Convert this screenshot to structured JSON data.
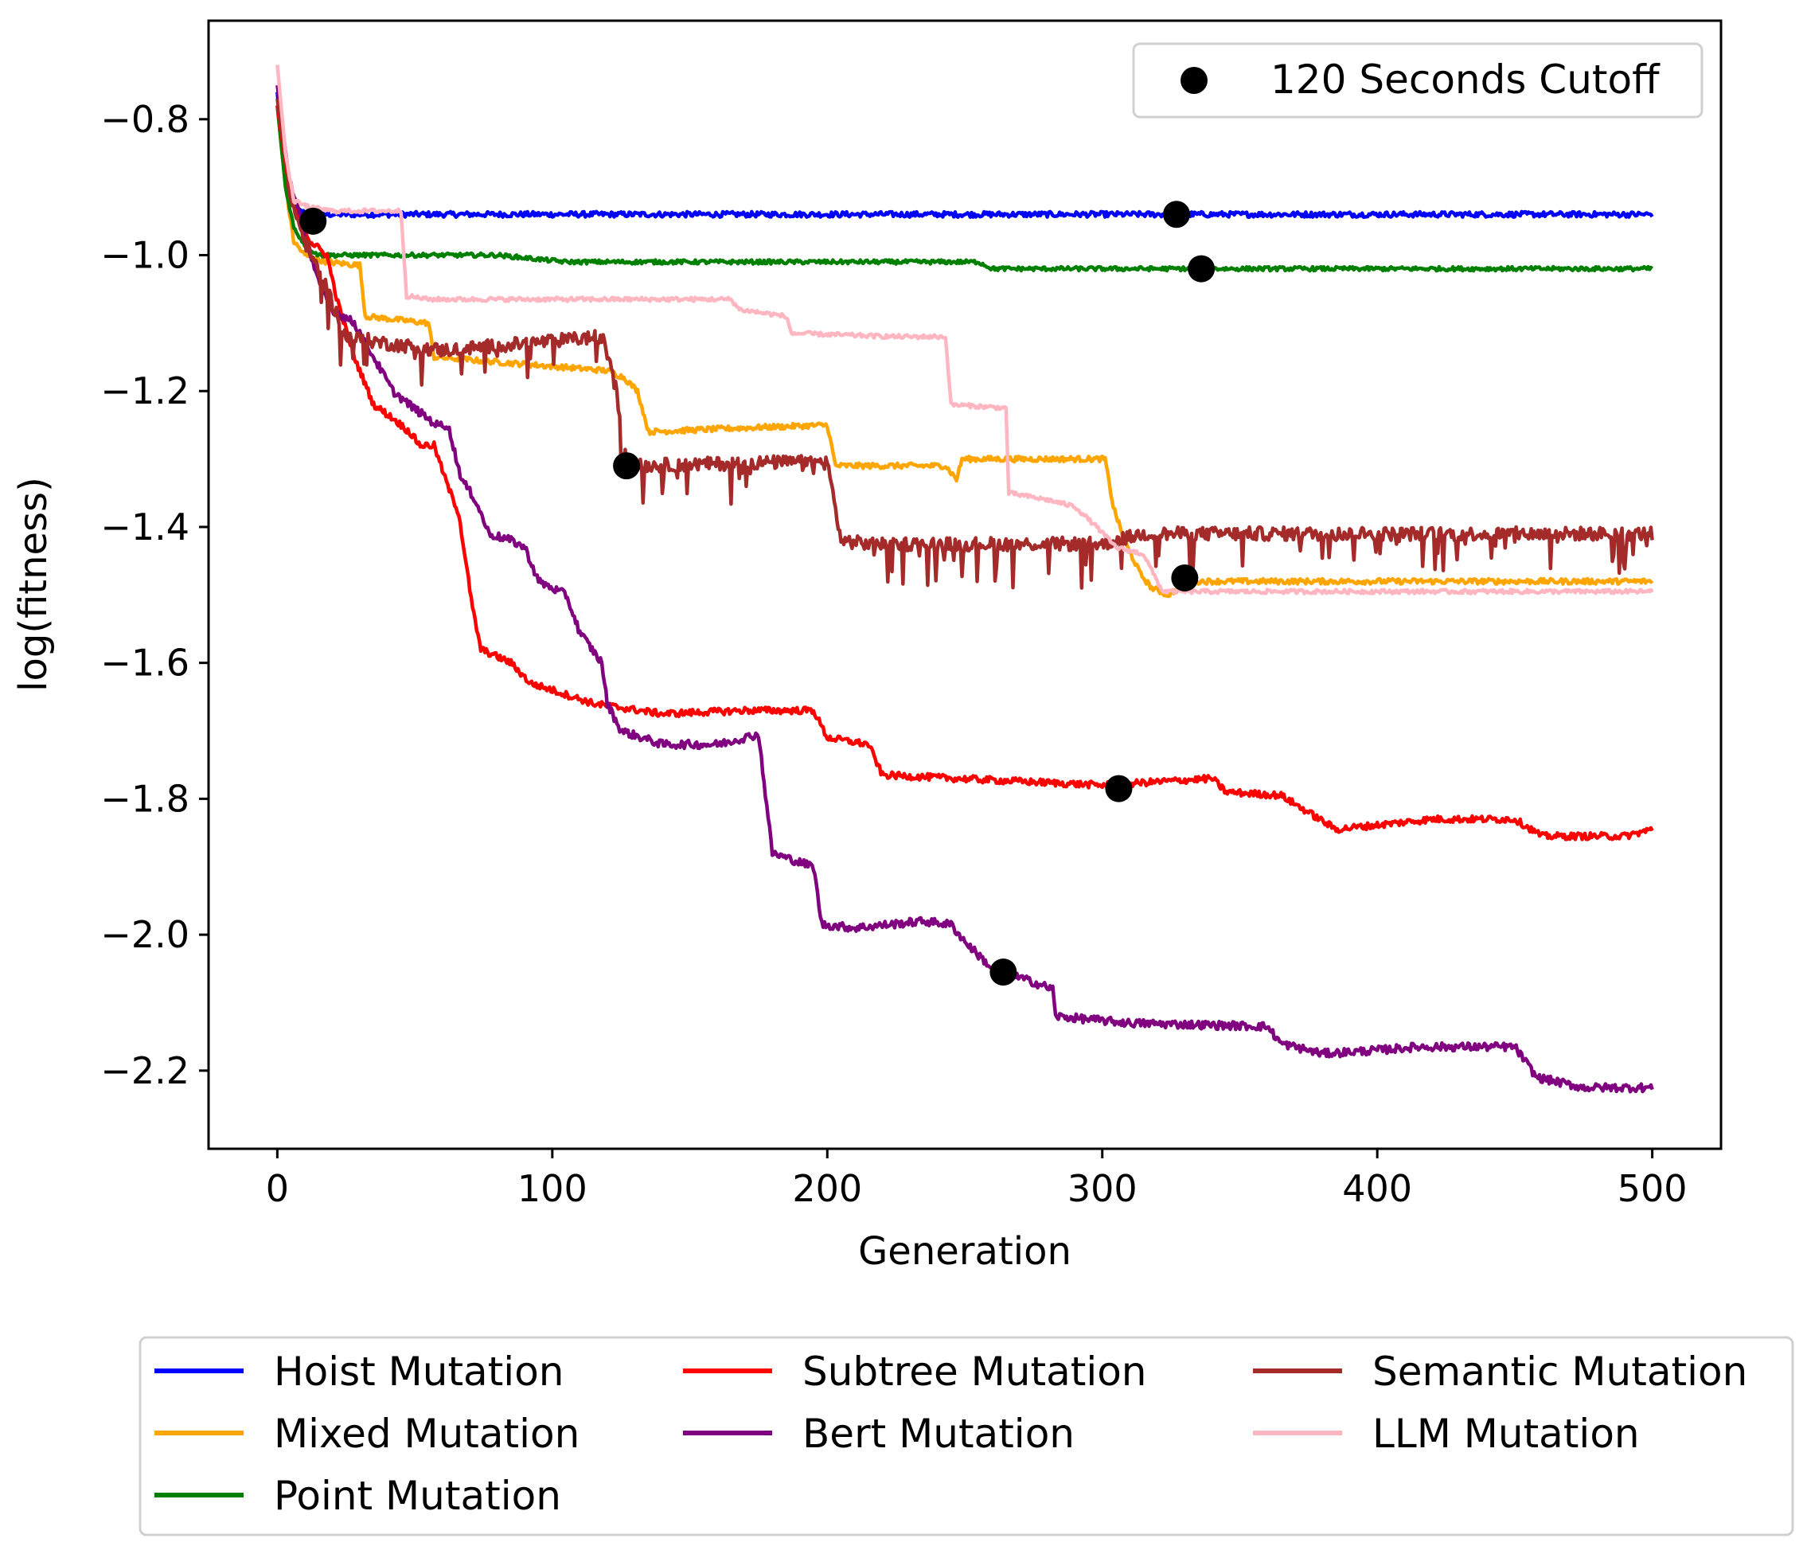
{
  "chart_data": {
    "type": "line",
    "title": "",
    "xlabel": "Generation",
    "ylabel": "log(fitness)",
    "xlim": [
      -25,
      525
    ],
    "ylim": [
      -2.315,
      -0.655
    ],
    "xticks": [
      0,
      100,
      200,
      300,
      400,
      500
    ],
    "xtick_labels": [
      "0",
      "100",
      "200",
      "300",
      "400",
      "500"
    ],
    "yticks": [
      -0.8,
      -1.0,
      -1.2,
      -1.4,
      -1.6,
      -1.8,
      -2.0,
      -2.2
    ],
    "ytick_labels": [
      "−0.8",
      "−1.0",
      "−1.2",
      "−1.4",
      "−1.6",
      "−1.8",
      "−2.0",
      "−2.2"
    ],
    "grid": false,
    "series": [
      {
        "name": "Hoist Mutation",
        "color": "#0000ff",
        "noise": 0.004,
        "points": [
          [
            0,
            -0.76
          ],
          [
            2,
            -0.86
          ],
          [
            5,
            -0.92
          ],
          [
            8,
            -0.935
          ],
          [
            12,
            -0.94
          ],
          [
            500,
            -0.94
          ]
        ]
      },
      {
        "name": "Mixed Mutation",
        "color": "#ffa500",
        "noise": 0.004,
        "points": [
          [
            0,
            -0.78
          ],
          [
            3,
            -0.9
          ],
          [
            6,
            -0.98
          ],
          [
            10,
            -1.0
          ],
          [
            18,
            -1.01
          ],
          [
            30,
            -1.015
          ],
          [
            32,
            -1.09
          ],
          [
            55,
            -1.1
          ],
          [
            57,
            -1.15
          ],
          [
            120,
            -1.17
          ],
          [
            126,
            -1.18
          ],
          [
            131,
            -1.2
          ],
          [
            135,
            -1.26
          ],
          [
            165,
            -1.255
          ],
          [
            200,
            -1.25
          ],
          [
            203,
            -1.31
          ],
          [
            243,
            -1.31
          ],
          [
            247,
            -1.33
          ],
          [
            249,
            -1.3
          ],
          [
            270,
            -1.3
          ],
          [
            270.5,
            -1.3
          ],
          [
            301,
            -1.3
          ],
          [
            304,
            -1.37
          ],
          [
            308,
            -1.42
          ],
          [
            314,
            -1.47
          ],
          [
            318,
            -1.49
          ],
          [
            324,
            -1.5
          ],
          [
            332,
            -1.48
          ],
          [
            500,
            -1.48
          ],
          [
            500,
            -1.5
          ]
        ]
      },
      {
        "name": "Point Mutation",
        "color": "#008000",
        "noise": 0.003,
        "points": [
          [
            0,
            -0.78
          ],
          [
            3,
            -0.9
          ],
          [
            6,
            -0.96
          ],
          [
            10,
            -0.985
          ],
          [
            15,
            -1.0
          ],
          [
            40,
            -1.0
          ],
          [
            80,
            -1.0
          ],
          [
            105,
            -1.01
          ],
          [
            255,
            -1.01
          ],
          [
            260,
            -1.02
          ],
          [
            500,
            -1.02
          ]
        ]
      },
      {
        "name": "Subtree Mutation",
        "color": "#ff0000",
        "noise": 0.005,
        "points": [
          [
            0,
            -0.78
          ],
          [
            5,
            -0.92
          ],
          [
            12,
            -0.98
          ],
          [
            18,
            -1.0
          ],
          [
            22,
            -1.07
          ],
          [
            28,
            -1.15
          ],
          [
            35,
            -1.22
          ],
          [
            42,
            -1.24
          ],
          [
            48,
            -1.26
          ],
          [
            52,
            -1.28
          ],
          [
            57,
            -1.28
          ],
          [
            62,
            -1.34
          ],
          [
            66,
            -1.38
          ],
          [
            71,
            -1.52
          ],
          [
            74,
            -1.58
          ],
          [
            85,
            -1.6
          ],
          [
            92,
            -1.63
          ],
          [
            100,
            -1.64
          ],
          [
            115,
            -1.66
          ],
          [
            140,
            -1.675
          ],
          [
            170,
            -1.67
          ],
          [
            195,
            -1.67
          ],
          [
            200,
            -1.71
          ],
          [
            215,
            -1.72
          ],
          [
            220,
            -1.765
          ],
          [
            300,
            -1.78
          ],
          [
            340,
            -1.77
          ],
          [
            345,
            -1.79
          ],
          [
            365,
            -1.795
          ],
          [
            375,
            -1.82
          ],
          [
            385,
            -1.845
          ],
          [
            420,
            -1.83
          ],
          [
            450,
            -1.83
          ],
          [
            460,
            -1.855
          ],
          [
            490,
            -1.855
          ],
          [
            500,
            -1.845
          ]
        ]
      },
      {
        "name": "Bert Mutation",
        "color": "#800080",
        "noise": 0.006,
        "points": [
          [
            0,
            -0.75
          ],
          [
            4,
            -0.88
          ],
          [
            10,
            -0.97
          ],
          [
            15,
            -1.04
          ],
          [
            20,
            -1.08
          ],
          [
            28,
            -1.1
          ],
          [
            35,
            -1.15
          ],
          [
            42,
            -1.2
          ],
          [
            48,
            -1.22
          ],
          [
            58,
            -1.25
          ],
          [
            62,
            -1.25
          ],
          [
            67,
            -1.33
          ],
          [
            72,
            -1.36
          ],
          [
            77,
            -1.41
          ],
          [
            85,
            -1.42
          ],
          [
            90,
            -1.43
          ],
          [
            95,
            -1.48
          ],
          [
            105,
            -1.5
          ],
          [
            110,
            -1.555
          ],
          [
            118,
            -1.6
          ],
          [
            120,
            -1.66
          ],
          [
            125,
            -1.7
          ],
          [
            140,
            -1.72
          ],
          [
            160,
            -1.72
          ],
          [
            175,
            -1.705
          ],
          [
            180,
            -1.88
          ],
          [
            195,
            -1.9
          ],
          [
            198,
            -1.985
          ],
          [
            210,
            -1.99
          ],
          [
            235,
            -1.98
          ],
          [
            245,
            -1.985
          ],
          [
            250,
            -2.01
          ],
          [
            260,
            -2.05
          ],
          [
            275,
            -2.07
          ],
          [
            282,
            -2.08
          ],
          [
            283,
            -2.12
          ],
          [
            310,
            -2.13
          ],
          [
            360,
            -2.135
          ],
          [
            365,
            -2.16
          ],
          [
            380,
            -2.175
          ],
          [
            400,
            -2.17
          ],
          [
            415,
            -2.165
          ],
          [
            450,
            -2.165
          ],
          [
            458,
            -2.21
          ],
          [
            475,
            -2.225
          ],
          [
            500,
            -2.225
          ]
        ]
      },
      {
        "name": "Semantic Mutation",
        "color": "#a52a2a",
        "noise": 0.01,
        "spikes": 0.03,
        "points": [
          [
            0,
            -0.77
          ],
          [
            5,
            -0.92
          ],
          [
            10,
            -0.98
          ],
          [
            18,
            -1.05
          ],
          [
            25,
            -1.12
          ],
          [
            40,
            -1.13
          ],
          [
            60,
            -1.14
          ],
          [
            90,
            -1.13
          ],
          [
            118,
            -1.12
          ],
          [
            122,
            -1.17
          ],
          [
            124,
            -1.22
          ],
          [
            127,
            -1.3
          ],
          [
            130,
            -1.31
          ],
          [
            180,
            -1.305
          ],
          [
            200,
            -1.305
          ],
          [
            205,
            -1.42
          ],
          [
            215,
            -1.425
          ],
          [
            300,
            -1.425
          ],
          [
            305,
            -1.42
          ],
          [
            315,
            -1.41
          ],
          [
            400,
            -1.41
          ],
          [
            500,
            -1.41
          ]
        ]
      },
      {
        "name": "LLM Mutation",
        "color": "#ffb6c1",
        "noise": 0.003,
        "points": [
          [
            0,
            -0.72
          ],
          [
            3,
            -0.85
          ],
          [
            6,
            -0.92
          ],
          [
            12,
            -0.93
          ],
          [
            20,
            -0.935
          ],
          [
            45,
            -0.935
          ],
          [
            47,
            -1.06
          ],
          [
            55,
            -1.065
          ],
          [
            120,
            -1.065
          ],
          [
            165,
            -1.065
          ],
          [
            168,
            -1.08
          ],
          [
            185,
            -1.09
          ],
          [
            187,
            -1.115
          ],
          [
            225,
            -1.12
          ],
          [
            243,
            -1.12
          ],
          [
            245,
            -1.22
          ],
          [
            265,
            -1.225
          ],
          [
            266,
            -1.35
          ],
          [
            280,
            -1.36
          ],
          [
            290,
            -1.37
          ],
          [
            298,
            -1.4
          ],
          [
            305,
            -1.43
          ],
          [
            315,
            -1.44
          ],
          [
            320,
            -1.48
          ],
          [
            322,
            -1.495
          ],
          [
            500,
            -1.495
          ]
        ]
      }
    ],
    "cutoff_points": {
      "name": "120 Seconds Cutoff",
      "points": [
        [
          13,
          -0.95
        ],
        [
          327,
          -0.94
        ],
        [
          336,
          -1.02
        ],
        [
          127,
          -1.31
        ],
        [
          330,
          -1.475
        ],
        [
          306,
          -1.785
        ],
        [
          264,
          -2.055
        ]
      ]
    },
    "legend_main": {
      "location": "lower center (below plot)",
      "columns": [
        [
          "Hoist Mutation",
          "Mixed Mutation",
          "Point Mutation"
        ],
        [
          "Subtree Mutation",
          "Bert Mutation"
        ],
        [
          "Semantic Mutation",
          "LLM Mutation"
        ]
      ]
    },
    "legend_cutoff": {
      "location": "upper right",
      "label": "120 Seconds Cutoff"
    }
  }
}
